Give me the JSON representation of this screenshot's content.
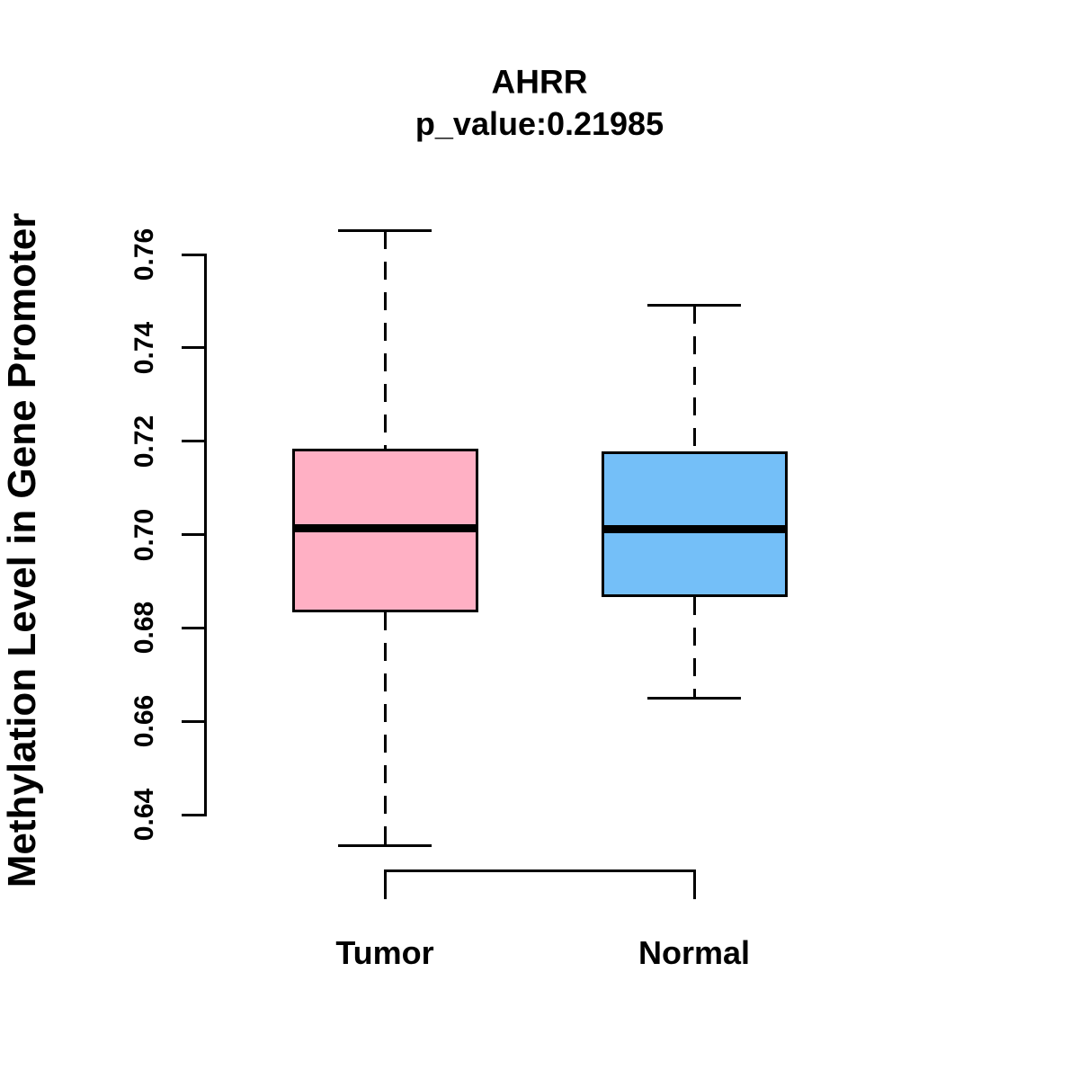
{
  "header": {
    "title": "AHRR",
    "subtitle": "p_value:0.21985",
    "p_value": "0.21985"
  },
  "axes": {
    "ylabel": "Methylation Level in Gene Promoter",
    "xlabel": ""
  },
  "chart_data": {
    "type": "boxplot",
    "title": "AHRR",
    "subtitle": "p_value:0.21985",
    "ylabel": "Methylation Level in Gene Promoter",
    "categories": [
      "Tumor",
      "Normal"
    ],
    "ylim": [
      0.64,
      0.76
    ],
    "y_ticks": [
      0.64,
      0.66,
      0.68,
      0.7,
      0.72,
      0.74,
      0.76
    ],
    "grid": false,
    "legend": "none",
    "axis_color": "#000000",
    "box_border_color": "#000000",
    "median_color": "#000000",
    "whisker_style": "dashed",
    "series": [
      {
        "name": "Tumor",
        "color": "#FFB0C4",
        "whisker_low": 0.6333,
        "q1": 0.6834,
        "median": 0.7013,
        "q3": 0.7183,
        "whisker_high": 0.7651
      },
      {
        "name": "Normal",
        "color": "#74BFF8",
        "whisker_low": 0.6649,
        "q1": 0.6867,
        "median": 0.7012,
        "q3": 0.7179,
        "whisker_high": 0.7491
      }
    ]
  }
}
